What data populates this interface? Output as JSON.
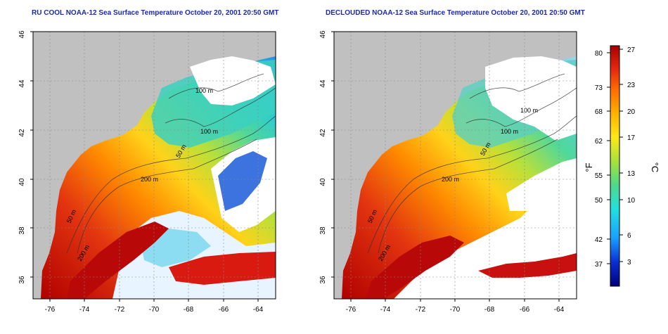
{
  "panels": [
    {
      "title": "RU COOL NOAA-12 Sea Surface Temperature October 20, 2001 20:50 GMT",
      "y_ticks": [
        "46",
        "44",
        "42",
        "40",
        "38",
        "36"
      ],
      "x_ticks": [
        "-76",
        "-74",
        "-72",
        "-70",
        "-68",
        "-66",
        "-64"
      ],
      "contour_labels": [
        "100 m",
        "100 m",
        "50 m",
        "200 m",
        "50 m",
        "200 m"
      ]
    },
    {
      "title": "DECLOUDED NOAA-12 Sea Surface Temperature October 20, 2001 20:50 GMT",
      "y_ticks": [
        "46",
        "44",
        "42",
        "40",
        "38",
        "36"
      ],
      "x_ticks": [
        "-76",
        "-74",
        "-72",
        "-70",
        "-68",
        "-66",
        "-64"
      ],
      "contour_labels": [
        "100 m",
        "100 m",
        "50 m",
        "200 m",
        "50 m",
        "200 m"
      ]
    }
  ],
  "colorbar": {
    "f_ticks": [
      "80",
      "73",
      "68",
      "62",
      "55",
      "50",
      "42",
      "37"
    ],
    "c_ticks": [
      "27",
      "23",
      "20",
      "17",
      "13",
      "10",
      "6",
      "3"
    ],
    "f_unit": "°F",
    "c_unit": "°C",
    "colors": [
      "#00007a",
      "#0a2fd0",
      "#19a0ff",
      "#22e0e0",
      "#4fd88a",
      "#a8e23a",
      "#ffe81a",
      "#ffb000",
      "#ff6a00",
      "#e52a10",
      "#a80000"
    ]
  },
  "colors": {
    "land": "#c0c0c0",
    "title": "#1a2aa8",
    "cloud": "#ffffff"
  }
}
